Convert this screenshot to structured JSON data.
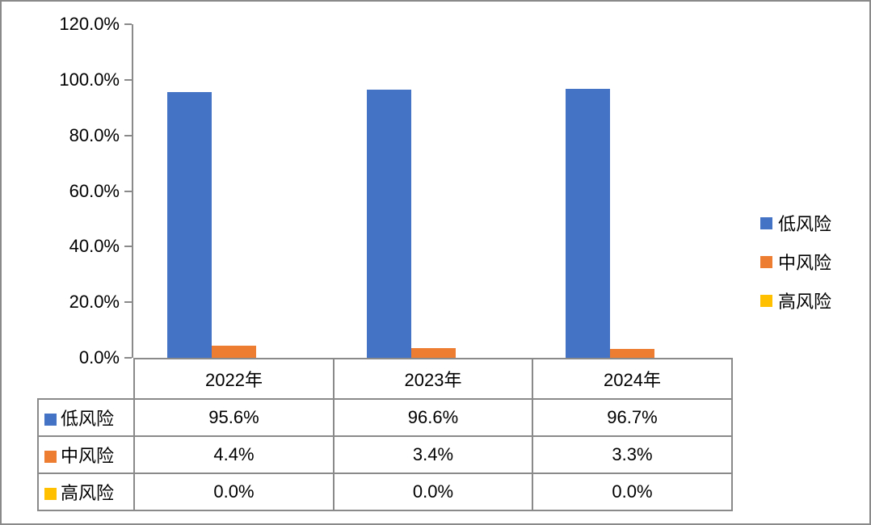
{
  "chart_data": {
    "type": "bar",
    "title": "",
    "xlabel": "",
    "ylabel": "",
    "grid": false,
    "categories": [
      "2022年",
      "2023年",
      "2024年"
    ],
    "series": [
      {
        "name": "低风险",
        "slug": "low-risk",
        "color": "#4472C4",
        "values": [
          95.6,
          96.6,
          96.7
        ],
        "value_labels": [
          "95.6%",
          "96.6%",
          "96.7%"
        ]
      },
      {
        "name": "中风险",
        "slug": "medium-risk",
        "color": "#ED7D31",
        "values": [
          4.4,
          3.4,
          3.3
        ],
        "value_labels": [
          "4.4%",
          "3.4%",
          "3.3%"
        ]
      },
      {
        "name": "高风险",
        "slug": "high-risk",
        "color": "#FFC000",
        "values": [
          0.0,
          0.0,
          0.0
        ],
        "value_labels": [
          "0.0%",
          "0.0%",
          "0.0%"
        ]
      }
    ],
    "ylim": [
      0,
      120
    ],
    "y_ticks": [
      {
        "value": 120,
        "label": "120.0%"
      },
      {
        "value": 100,
        "label": "100.0%"
      },
      {
        "value": 80,
        "label": "80.0%"
      },
      {
        "value": 60,
        "label": "60.0%"
      },
      {
        "value": 40,
        "label": "40.0%"
      },
      {
        "value": 20,
        "label": "20.0%"
      },
      {
        "value": 0,
        "label": "0.0%"
      }
    ],
    "legend_position": "right",
    "legend_entries": [
      "低风险",
      "中风险",
      "高风险"
    ],
    "data_table": {
      "column_headers": [
        "2022年",
        "2023年",
        "2024年"
      ],
      "rows": [
        {
          "label": "低风险",
          "color": "#4472C4",
          "cells": [
            "95.6%",
            "96.6%",
            "96.7%"
          ]
        },
        {
          "label": "中风险",
          "color": "#ED7D31",
          "cells": [
            "4.4%",
            "3.4%",
            "3.3%"
          ]
        },
        {
          "label": "高风险",
          "color": "#FFC000",
          "cells": [
            "0.0%",
            "0.0%",
            "0.0%"
          ]
        }
      ]
    }
  },
  "colors": {
    "bar_low": "#4472C4",
    "bar_medium": "#ED7D31",
    "bar_high": "#FFC000",
    "axis_line": "#8a8a8a",
    "table_border": "#8a8a8a",
    "canvas_border": "#8a8a8a",
    "text": "#000000",
    "background": "#FFFFFF"
  }
}
